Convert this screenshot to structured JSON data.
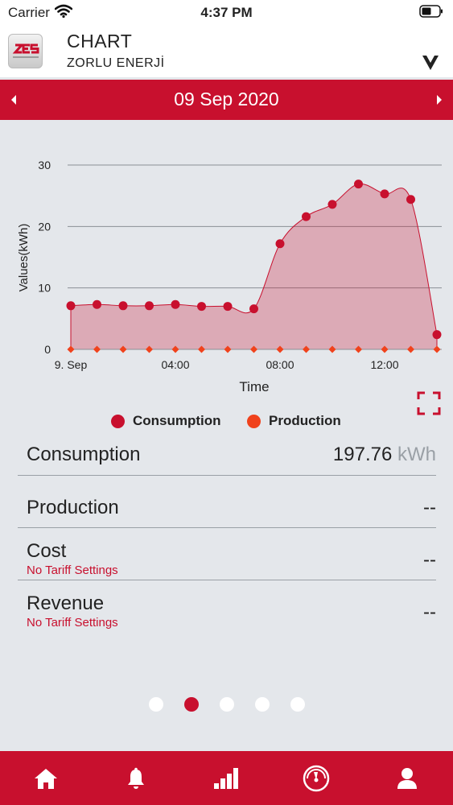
{
  "status_bar": {
    "carrier": "Carrier",
    "time": "4:37 PM"
  },
  "header": {
    "logo_text": "ZES",
    "title": "CHART",
    "subtitle": "ZORLU ENERJİ"
  },
  "date_nav": {
    "date": "09 Sep 2020"
  },
  "chart_data": {
    "type": "area",
    "xlabel": "Time",
    "ylabel": "Values(kWh)",
    "ylim": [
      0,
      30
    ],
    "y_ticks": [
      "0",
      "10",
      "20",
      "30"
    ],
    "x_ticks": [
      {
        "hour": 0,
        "label": "9. Sep"
      },
      {
        "hour": 4,
        "label": "04:00"
      },
      {
        "hour": 8,
        "label": "08:00"
      },
      {
        "hour": 12,
        "label": "12:00"
      }
    ],
    "x_hours": [
      0,
      1,
      2,
      3,
      4,
      5,
      6,
      7,
      8,
      9,
      10,
      11,
      12,
      13,
      14
    ],
    "grid": true,
    "legend_position": "bottom",
    "series": [
      {
        "name": "Consumption",
        "color": "#c8102e",
        "values": [
          7.1,
          7.3,
          7.1,
          7.1,
          7.3,
          7.0,
          7.0,
          6.6,
          17.2,
          21.6,
          23.6,
          26.9,
          25.3,
          24.4,
          2.4
        ]
      },
      {
        "name": "Production",
        "color": "#f0421c",
        "values": [
          0,
          0,
          0,
          0,
          0,
          0,
          0,
          0,
          0,
          0,
          0,
          0,
          0,
          0,
          0
        ]
      }
    ]
  },
  "summary": {
    "consumption": {
      "label": "Consumption",
      "value": "197.76",
      "unit": "kWh"
    },
    "production": {
      "label": "Production",
      "value": "--"
    },
    "cost": {
      "label": "Cost",
      "note": "No Tariff Settings",
      "value": "--"
    },
    "revenue": {
      "label": "Revenue",
      "note": "No Tariff Settings",
      "value": "--"
    }
  },
  "pagination": {
    "count": 5,
    "active_index": 1
  },
  "tabs": [
    {
      "icon": "home-icon"
    },
    {
      "icon": "bell-icon"
    },
    {
      "icon": "bar-chart-icon"
    },
    {
      "icon": "gauge-icon"
    },
    {
      "icon": "user-icon"
    }
  ],
  "colors": {
    "brand_red": "#c8102e",
    "production_orange": "#f0421c",
    "background": "#e4e7eb"
  }
}
